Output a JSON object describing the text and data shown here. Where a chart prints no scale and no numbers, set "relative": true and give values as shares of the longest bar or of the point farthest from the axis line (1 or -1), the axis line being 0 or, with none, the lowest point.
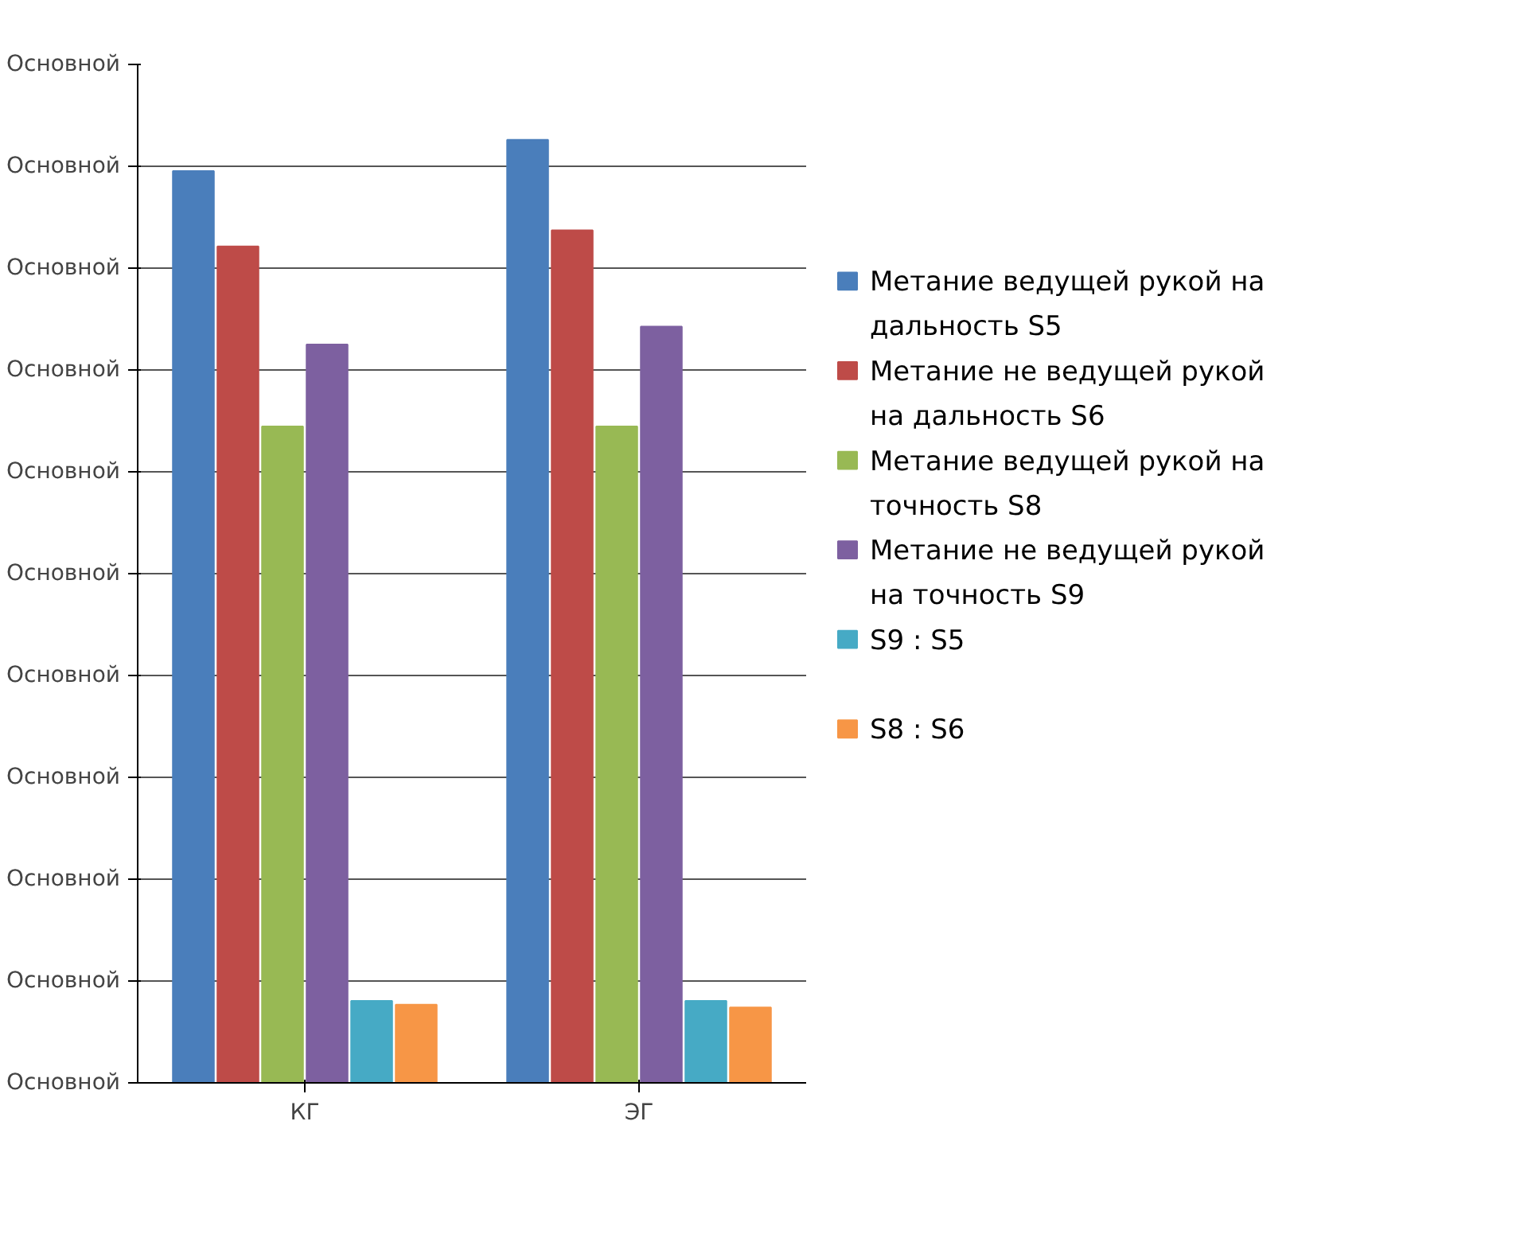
{
  "chart_data": {
    "type": "bar",
    "relative": true,
    "categories": [
      "КГ",
      "ЭГ"
    ],
    "series": [
      {
        "name": "Метание ведущей рукой на дальность S5",
        "color": "#4a7ebb",
        "values": [
          0.967,
          1
        ]
      },
      {
        "name": "Метание не ведущей рукой на дальность S6",
        "color": "#be4b48",
        "values": [
          0.887,
          0.904
        ]
      },
      {
        "name": "Метание ведущей рукой на точность S8",
        "color": "#98b954",
        "values": [
          0.696,
          0.696
        ]
      },
      {
        "name": "Метание не ведущей рукой на точность S9",
        "color": "#7d60a0",
        "values": [
          0.783,
          0.802
        ]
      },
      {
        "name": "S9 : S5",
        "color": "#46aac5",
        "values": [
          0.087,
          0.087
        ]
      },
      {
        "name": "S8 : S6",
        "color": "#f79646",
        "values": [
          0.083,
          0.08
        ]
      }
    ],
    "annotations": [
      "Основной",
      "Основной",
      "Основной",
      "Основной",
      "Основной",
      "Основной",
      "Основной",
      "Основной",
      "Основной",
      "Основной",
      "Основной"
    ],
    "grid": "y",
    "legend": "right"
  }
}
